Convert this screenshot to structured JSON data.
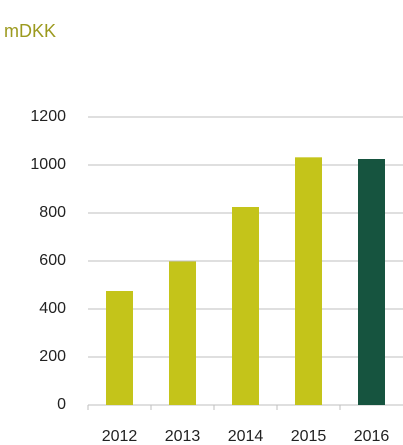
{
  "chart_data": {
    "type": "bar",
    "title": "mDKK",
    "categories": [
      "2012",
      "2013",
      "2014",
      "2015",
      "2016"
    ],
    "values": [
      475,
      598,
      825,
      1032,
      1025
    ],
    "colors": [
      "#c4c41a",
      "#c4c41a",
      "#c4c41a",
      "#c4c41a",
      "#16543f"
    ],
    "ylim": [
      0,
      1200
    ],
    "yticks": [
      0,
      200,
      400,
      600,
      800,
      1000,
      1200
    ],
    "grid": true
  }
}
